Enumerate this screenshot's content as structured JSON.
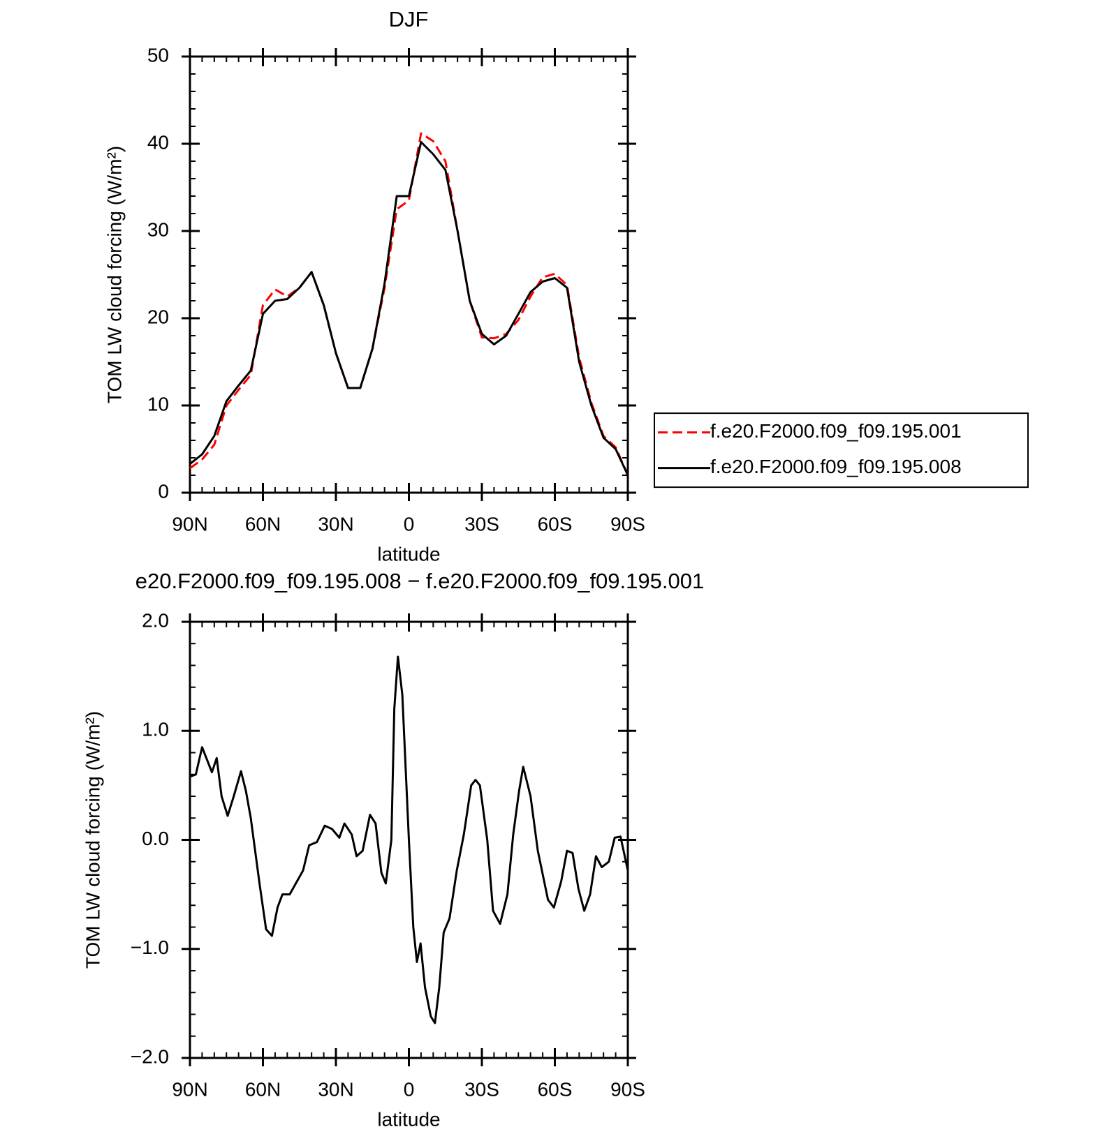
{
  "chart_data": [
    {
      "type": "line",
      "title": "DJF",
      "xlabel": "latitude",
      "ylabel": "TOM LW cloud forcing (W/m²)",
      "x": [
        90,
        85,
        80,
        75,
        70,
        65,
        60,
        55,
        50,
        45,
        40,
        35,
        30,
        25,
        20,
        15,
        10,
        5,
        0,
        -5,
        -10,
        -15,
        -20,
        -25,
        -30,
        -35,
        -40,
        -45,
        -50,
        -55,
        -60,
        -65,
        -70,
        -75,
        -80,
        -85,
        -90
      ],
      "series": [
        {
          "name": "f.e20.F2000.f09_f09.195.001",
          "color": "#ff0000",
          "linestyle": "dashed",
          "values": [
            2.8,
            3.8,
            5.5,
            10,
            11.8,
            13.5,
            21.5,
            23.3,
            22.5,
            23.5,
            25.3,
            21.5,
            16,
            12,
            12,
            16.5,
            23.5,
            32.5,
            33.5,
            41.2,
            40.3,
            38,
            30,
            22,
            17.8,
            17.7,
            18.2,
            19.8,
            22.5,
            24.7,
            25.1,
            23.8,
            15.5,
            10.3,
            6.5,
            5.2,
            2
          ]
        },
        {
          "name": "f.e20.F2000.f09_f09.195.008",
          "color": "#000000",
          "linestyle": "solid",
          "values": [
            3.3,
            4.4,
            6.5,
            10.5,
            12.3,
            14,
            20.5,
            22,
            22.2,
            23.5,
            25.3,
            21.5,
            16,
            12,
            12,
            16.5,
            24,
            34,
            34,
            40.2,
            38.8,
            37,
            30,
            22,
            18.2,
            17,
            18,
            20.5,
            23,
            24.2,
            24.6,
            23.5,
            15,
            10,
            6.3,
            5,
            2
          ]
        }
      ],
      "xlim": [
        90,
        -90
      ],
      "xticks": [
        {
          "value": 90,
          "label": "90N"
        },
        {
          "value": 60,
          "label": "60N"
        },
        {
          "value": 30,
          "label": "30N"
        },
        0,
        {
          "value": -30,
          "label": "30S"
        },
        {
          "value": -60,
          "label": "60S"
        },
        {
          "value": -90,
          "label": "90S"
        }
      ],
      "xticks_minor": [
        85,
        80,
        75,
        70,
        65,
        55,
        50,
        45,
        40,
        35,
        25,
        20,
        15,
        10,
        5,
        -5,
        -10,
        -15,
        -20,
        -25,
        -35,
        -40,
        -45,
        -50,
        -55,
        -65,
        -70,
        -75,
        -80,
        -85
      ],
      "ylim": [
        0,
        50
      ],
      "yticks": [
        0,
        10,
        20,
        30,
        40,
        50
      ],
      "yticks_minor": [
        2,
        4,
        6,
        8,
        12,
        14,
        16,
        18,
        22,
        24,
        26,
        28,
        32,
        34,
        36,
        38,
        42,
        44,
        46,
        48
      ],
      "legend": "right"
    },
    {
      "type": "line",
      "title": "e20.F2000.f09_f09.195.008 − f.e20.F2000.f09_f09.195.001",
      "xlabel": "latitude",
      "ylabel": "TOM LW cloud forcing (W/m²)",
      "x": [
        90,
        87.6,
        85,
        81,
        79,
        77,
        74.5,
        72,
        69,
        67,
        65,
        61.4,
        58.7,
        56.3,
        54,
        52,
        49,
        46,
        43.5,
        41,
        37.8,
        34.6,
        31.6,
        28.6,
        26.5,
        23.5,
        21.5,
        19,
        16,
        13.7,
        11.3,
        9.5,
        7.2,
        6,
        4.5,
        2.7,
        0,
        -1.8,
        -3.3,
        -4.8,
        -6.6,
        -9,
        -10.7,
        -12.5,
        -14.3,
        -16.7,
        -19.7,
        -22.6,
        -25.6,
        -27.4,
        -29.2,
        -32.2,
        -34.6,
        -37.5,
        -40.5,
        -42.9,
        -45.3,
        -47,
        -50,
        -53,
        -57.2,
        -59.6,
        -62.6,
        -65,
        -67.3,
        -69.7,
        -72.1,
        -74.5,
        -76.9,
        -79.3,
        -82.2,
        -84.6,
        -87,
        -90
      ],
      "series": [
        {
          "color": "#000000",
          "linestyle": "solid",
          "values": [
            0.58,
            0.6,
            0.85,
            0.62,
            0.75,
            0.4,
            0.22,
            0.4,
            0.63,
            0.45,
            0.2,
            -0.4,
            -0.82,
            -0.88,
            -0.62,
            -0.5,
            -0.5,
            -0.38,
            -0.28,
            -0.05,
            -0.02,
            0.13,
            0.1,
            0.02,
            0.15,
            0.05,
            -0.15,
            -0.1,
            0.23,
            0.15,
            -0.3,
            -0.4,
            0,
            1.2,
            1.68,
            1.33,
            0,
            -0.8,
            -1.12,
            -0.95,
            -1.35,
            -1.62,
            -1.68,
            -1.35,
            -0.85,
            -0.72,
            -0.28,
            0.05,
            0.5,
            0.55,
            0.5,
            0,
            -0.65,
            -0.77,
            -0.5,
            0.05,
            0.45,
            0.67,
            0.4,
            -0.1,
            -0.55,
            -0.62,
            -0.38,
            -0.1,
            -0.12,
            -0.45,
            -0.65,
            -0.5,
            -0.15,
            -0.25,
            -0.2,
            0.02,
            0.03,
            -0.28
          ]
        }
      ],
      "xlim": [
        90,
        -90
      ],
      "xticks": [
        {
          "value": 90,
          "label": "90N"
        },
        {
          "value": 60,
          "label": "60N"
        },
        {
          "value": 30,
          "label": "30N"
        },
        0,
        {
          "value": -30,
          "label": "30S"
        },
        {
          "value": -60,
          "label": "60S"
        },
        {
          "value": -90,
          "label": "90S"
        }
      ],
      "xticks_minor": [
        85,
        80,
        75,
        70,
        65,
        55,
        50,
        45,
        40,
        35,
        25,
        20,
        15,
        10,
        5,
        -5,
        -10,
        -15,
        -20,
        -25,
        -35,
        -40,
        -45,
        -50,
        -55,
        -65,
        -70,
        -75,
        -80,
        -85
      ],
      "ylim": [
        -2,
        2
      ],
      "yticks": [
        {
          "value": -2,
          "label": "−2.0"
        },
        {
          "value": -1,
          "label": "−1.0"
        },
        {
          "value": 0,
          "label": "0.0"
        },
        {
          "value": 1,
          "label": "1.0"
        },
        {
          "value": 2,
          "label": "2.0"
        }
      ],
      "yticks_minor": [
        -1.8,
        -1.6,
        -1.4,
        -1.2,
        -0.8,
        -0.6,
        -0.4,
        -0.2,
        0.2,
        0.4,
        0.6,
        0.8,
        1.2,
        1.4,
        1.6,
        1.8
      ]
    }
  ]
}
